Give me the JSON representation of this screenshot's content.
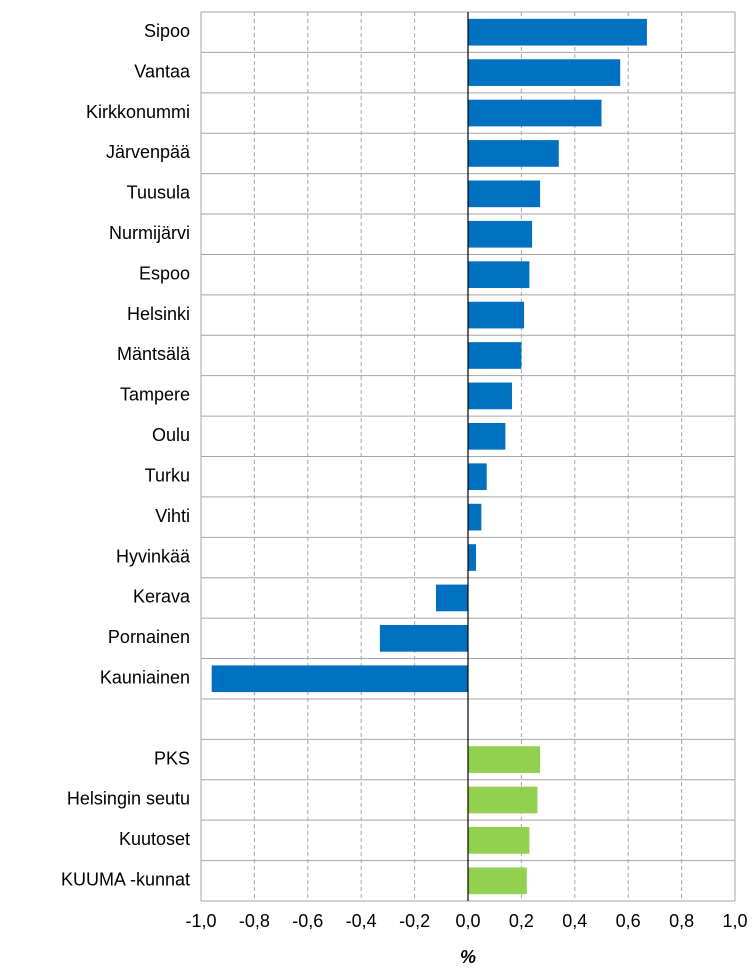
{
  "chart_data": {
    "type": "barh",
    "categories": [
      "Sipoo",
      "Vantaa",
      "Kirkkonummi",
      "Järvenpää",
      "Tuusula",
      "Nurmijärvi",
      "Espoo",
      "Helsinki",
      "Mäntsälä",
      "Tampere",
      "Oulu",
      "Turku",
      "Vihti",
      "Hyvinkää",
      "Kerava",
      "Pornainen",
      "Kauniainen",
      null,
      "PKS",
      "Helsingin seutu",
      "Kuutoset",
      "KUUMA -kunnat"
    ],
    "values": [
      0.67,
      0.57,
      0.5,
      0.34,
      0.27,
      0.24,
      0.23,
      0.21,
      0.2,
      0.165,
      0.14,
      0.07,
      0.05,
      0.03,
      -0.12,
      -0.33,
      -0.96,
      null,
      0.27,
      0.26,
      0.23,
      0.22
    ],
    "colors": [
      "#0070c0",
      "#0070c0",
      "#0070c0",
      "#0070c0",
      "#0070c0",
      "#0070c0",
      "#0070c0",
      "#0070c0",
      "#0070c0",
      "#0070c0",
      "#0070c0",
      "#0070c0",
      "#0070c0",
      "#0070c0",
      "#0070c0",
      "#0070c0",
      "#0070c0",
      null,
      "#92d050",
      "#92d050",
      "#92d050",
      "#92d050"
    ],
    "x_label": "%",
    "xlim": [
      -1.0,
      1.0
    ],
    "xticks": [
      {
        "value": -1.0,
        "label": "-1,0"
      },
      {
        "value": -0.8,
        "label": "-0,8"
      },
      {
        "value": -0.6,
        "label": "-0,6"
      },
      {
        "value": -0.4,
        "label": "-0,4"
      },
      {
        "value": -0.2,
        "label": "-0,2"
      },
      {
        "value": 0,
        "label": "0,0"
      },
      {
        "value": 0.2,
        "label": "0,2"
      },
      {
        "value": 0.4,
        "label": "0,4"
      },
      {
        "value": 0.6,
        "label": "0,6"
      },
      {
        "value": 0.8,
        "label": "0,8"
      },
      {
        "value": 1.0,
        "label": "1,0"
      }
    ],
    "grid": true
  }
}
